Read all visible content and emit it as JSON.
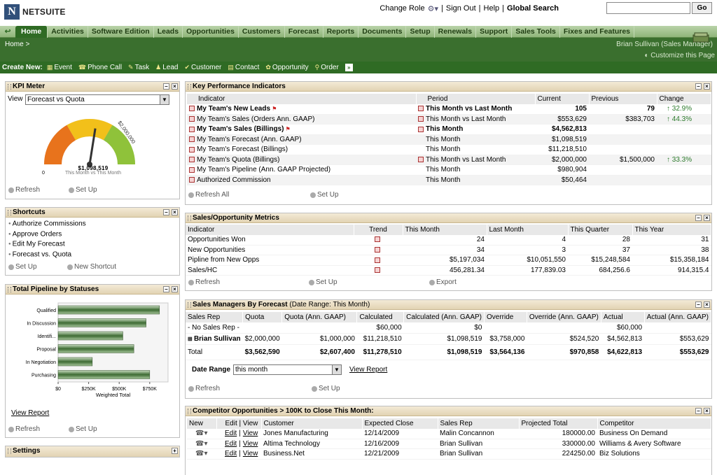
{
  "header": {
    "logo_text": "NETSUITE",
    "links": [
      "Change Role",
      "|",
      "Sign Out",
      "|",
      "Help",
      "|"
    ],
    "global_search_label": "Global Search",
    "search_value": "",
    "go_label": "Go"
  },
  "nav": {
    "tabs": [
      "Home",
      "Activities",
      "Software Edition",
      "Leads",
      "Opportunities",
      "Customers",
      "Forecast",
      "Reports",
      "Documents",
      "Setup",
      "Renewals",
      "Support",
      "Sales Tools",
      "Fixes and Features"
    ]
  },
  "breadcrumb": "Home >",
  "user": "Brian Sullivan (Sales Manager)",
  "customize": "Customize this Page",
  "create_new": {
    "label": "Create New:",
    "items": [
      "Event",
      "Phone Call",
      "Task",
      "Lead",
      "Customer",
      "Contact",
      "Opportunity",
      "Order"
    ]
  },
  "kpi_meter": {
    "title": "KPI Meter",
    "view_label": "View",
    "view_value": "Forecast vs Quota",
    "gauge_min": "0",
    "gauge_max": "$2,000,000",
    "gauge_value": "$1,098,519",
    "gauge_caption": "This Month vs This Month",
    "gauge_fraction": 0.55,
    "refresh": "Refresh",
    "setup": "Set Up"
  },
  "shortcuts": {
    "title": "Shortcuts",
    "items": [
      "Authorize Commissions",
      "Approve Orders",
      "Edit My Forecast",
      "Forecast vs. Quota"
    ],
    "setup": "Set Up",
    "new_shortcut": "New Shortcut"
  },
  "pipeline": {
    "title": "Total Pipeline by Statuses",
    "view_report": "View Report",
    "refresh": "Refresh",
    "setup": "Set Up"
  },
  "settings": {
    "title": "Settings"
  },
  "chart_data": {
    "type": "bar",
    "categories": [
      "Qualified",
      "In Discussion",
      "Identifi...",
      "Proposal",
      "In Negotiation",
      "Purchasing"
    ],
    "values": [
      830000,
      720000,
      530000,
      620000,
      280000,
      750000
    ],
    "xlabel": "Weighted Total",
    "xticks": [
      "$0",
      "$250K",
      "$500K",
      "$750K"
    ],
    "xlim": [
      0,
      900000
    ]
  },
  "kpi": {
    "title": "Key Performance Indicators",
    "headers": [
      "Indicator",
      "Period",
      "Current",
      "Previous",
      "Change"
    ],
    "rows": [
      {
        "indicator": "My Team's New Leads",
        "bold": true,
        "flag": true,
        "period": "This Month vs Last Month",
        "pbold": true,
        "picon": true,
        "current": "105",
        "previous": "79",
        "change": "32.9%"
      },
      {
        "indicator": "My Team's Sales (Orders Ann. GAAP)",
        "bold": false,
        "flag": false,
        "period": "This Month vs Last Month",
        "pbold": false,
        "picon": true,
        "current": "$553,629",
        "previous": "$383,703",
        "change": "44.3%"
      },
      {
        "indicator": "My Team's Sales (Billings)",
        "bold": true,
        "flag": true,
        "period": "This Month",
        "pbold": true,
        "picon": true,
        "current": "$4,562,813",
        "previous": "",
        "change": ""
      },
      {
        "indicator": "My Team's Forecast (Ann. GAAP)",
        "bold": false,
        "flag": false,
        "period": "This Month",
        "pbold": false,
        "picon": false,
        "current": "$1,098,519",
        "previous": "",
        "change": ""
      },
      {
        "indicator": "My Team's Forecast (Billings)",
        "bold": false,
        "flag": false,
        "period": "This Month",
        "pbold": false,
        "picon": false,
        "current": "$11,218,510",
        "previous": "",
        "change": ""
      },
      {
        "indicator": "My Team's Quota (Billings)",
        "bold": false,
        "flag": false,
        "period": "This Month vs Last Month",
        "pbold": false,
        "picon": true,
        "current": "$2,000,000",
        "previous": "$1,500,000",
        "change": "33.3%"
      },
      {
        "indicator": "My Team's Pipeline (Ann. GAAP Projected)",
        "bold": false,
        "flag": false,
        "period": "This Month",
        "pbold": false,
        "picon": false,
        "current": "$980,904",
        "previous": "",
        "change": ""
      },
      {
        "indicator": "Authorized Commission",
        "bold": false,
        "flag": false,
        "period": "This Month",
        "pbold": false,
        "picon": false,
        "current": "$50,464",
        "previous": "",
        "change": ""
      }
    ],
    "refresh_all": "Refresh All",
    "setup": "Set Up"
  },
  "sales_metrics": {
    "title": "Sales/Opportunity Metrics",
    "headers": [
      "Indicator",
      "Trend",
      "This Month",
      "Last Month",
      "This Quarter",
      "This Year"
    ],
    "rows": [
      [
        "Opportunities Won",
        "24",
        "4",
        "28",
        "31"
      ],
      [
        "New Opportunities",
        "34",
        "3",
        "37",
        "38"
      ],
      [
        "Pipline from New Opps",
        "$5,197,034",
        "$10,051,550",
        "$15,248,584",
        "$15,358,184"
      ],
      [
        "Sales/HC",
        "456,281.34",
        "177,839.03",
        "684,256.6",
        "914,315.4"
      ]
    ],
    "refresh": "Refresh",
    "setup": "Set Up",
    "export": "Export"
  },
  "forecast": {
    "title": "Sales Managers By Forecast",
    "subtitle": "(Date Range: This Month)",
    "headers": [
      "Sales Rep",
      "Quota",
      "Quota (Ann. GAAP)",
      "Calculated",
      "Calculated (Ann. GAAP)",
      "Override",
      "Override (Ann. GAAP)",
      "Actual",
      "Actual (Ann. GAAP)"
    ],
    "rows": [
      [
        "- No Sales Rep -",
        "",
        "",
        "$60,000",
        "$0",
        "",
        "",
        "$60,000",
        ""
      ],
      [
        "Brian Sullivan",
        "$2,000,000",
        "$1,000,000",
        "$11,218,510",
        "$1,098,519",
        "$3,758,000",
        "$524,520",
        "$4,562,813",
        "$553,629"
      ]
    ],
    "total": [
      "Total",
      "$3,562,590",
      "$2,607,400",
      "$11,278,510",
      "$1,098,519",
      "$3,564,136",
      "$970,858",
      "$4,622,813",
      "$553,629"
    ],
    "date_range_label": "Date Range",
    "date_range_value": "this month",
    "view_report": "View Report",
    "refresh": "Refresh",
    "setup": "Set Up"
  },
  "competitor": {
    "title": "Competitor Opportunities > 100K to Close This Month:",
    "headers": [
      "New",
      "Edit | View",
      "Customer",
      "Expected Close",
      "Sales Rep",
      "Projected Total",
      "Competitor"
    ],
    "edit": "Edit",
    "view": "View",
    "sep": "|",
    "rows": [
      [
        "Jones Manufacturing",
        "12/14/2009",
        "Malin Concannon",
        "180000.00",
        "Business On Demand"
      ],
      [
        "Altima Technology",
        "12/16/2009",
        "Brian Sullivan",
        "330000.00",
        "Williams & Avery Software"
      ],
      [
        "Business.Net",
        "12/21/2009",
        "Brian Sullivan",
        "224250.00",
        "Biz Solutions"
      ]
    ]
  }
}
